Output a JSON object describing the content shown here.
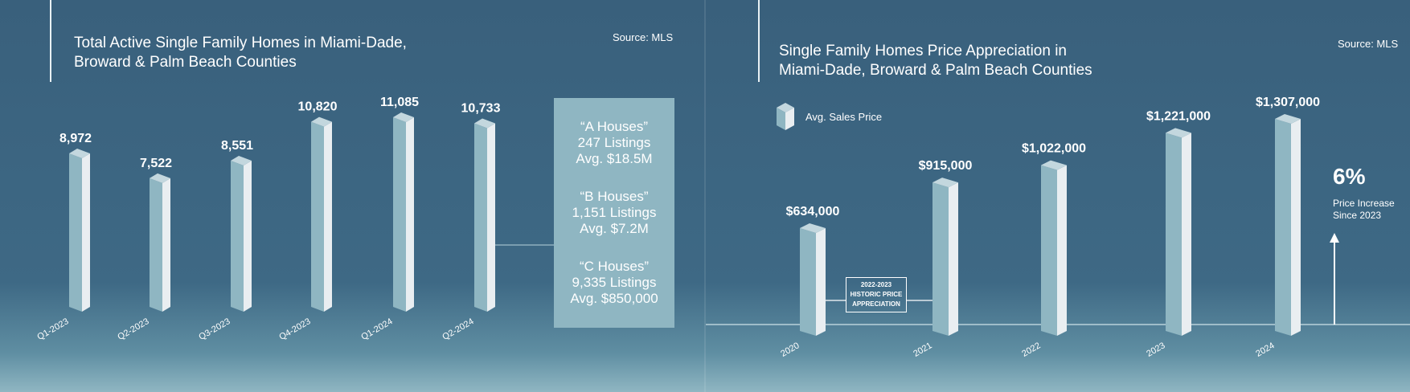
{
  "colors": {
    "bar_front": "#8fb6c2",
    "bar_side": "#e9eef1",
    "bar_top": "#c3d7de",
    "background": "#3e6985",
    "baseline": "#9fbdc9"
  },
  "left_panel": {
    "title_line1": "Total Active Single Family Homes in Miami-Dade,",
    "title_line2": "Broward & Palm Beach Counties",
    "source": "Source: MLS",
    "info_box": [
      {
        "name": "“A Houses”",
        "listings": "247 Listings",
        "avg": "Avg. $18.5M"
      },
      {
        "name": "“B Houses”",
        "listings": "1,151 Listings",
        "avg": "Avg. $7.2M"
      },
      {
        "name": "“C Houses”",
        "listings": "9,335 Listings",
        "avg": "Avg. $850,000"
      }
    ]
  },
  "right_panel": {
    "title_line1": "Single Family Homes Price Appreciation in",
    "title_line2": "Miami-Dade, Broward & Palm Beach Counties",
    "source": "Source: MLS",
    "legend_label": "Avg. Sales Price",
    "increase_value": "6%",
    "increase_line1": "Price Increase",
    "increase_line2": "Since 2023",
    "historic_line1": "2022-2023",
    "historic_line2": "HISTORIC PRICE",
    "historic_line3": "APPRECIATION"
  },
  "chart_data": [
    {
      "type": "bar",
      "title": "Total Active Single Family Homes in Miami-Dade, Broward & Palm Beach Counties",
      "xlabel": "",
      "ylabel": "",
      "ylim": [
        0,
        11085
      ],
      "categories": [
        "Q1-2023",
        "Q2-2023",
        "Q3-2023",
        "Q4-2023",
        "Q1-2024",
        "Q2-2024"
      ],
      "values": [
        8972,
        7522,
        8551,
        10820,
        11085,
        10733
      ],
      "value_labels": [
        "8,972",
        "7,522",
        "8,551",
        "10,820",
        "11,085",
        "10,733"
      ]
    },
    {
      "type": "bar",
      "title": "Single Family Homes Price Appreciation in Miami-Dade, Broward & Palm Beach Counties",
      "xlabel": "",
      "ylabel": "",
      "ylim": [
        0,
        1307000
      ],
      "categories": [
        "2020",
        "2021",
        "2022",
        "2023",
        "2024"
      ],
      "values": [
        634000,
        915000,
        1022000,
        1221000,
        1307000
      ],
      "value_labels": [
        "$634,000",
        "$915,000",
        "$1,022,000",
        "$1,221,000",
        "$1,307,000"
      ],
      "legend": [
        "Avg. Sales Price"
      ]
    }
  ]
}
